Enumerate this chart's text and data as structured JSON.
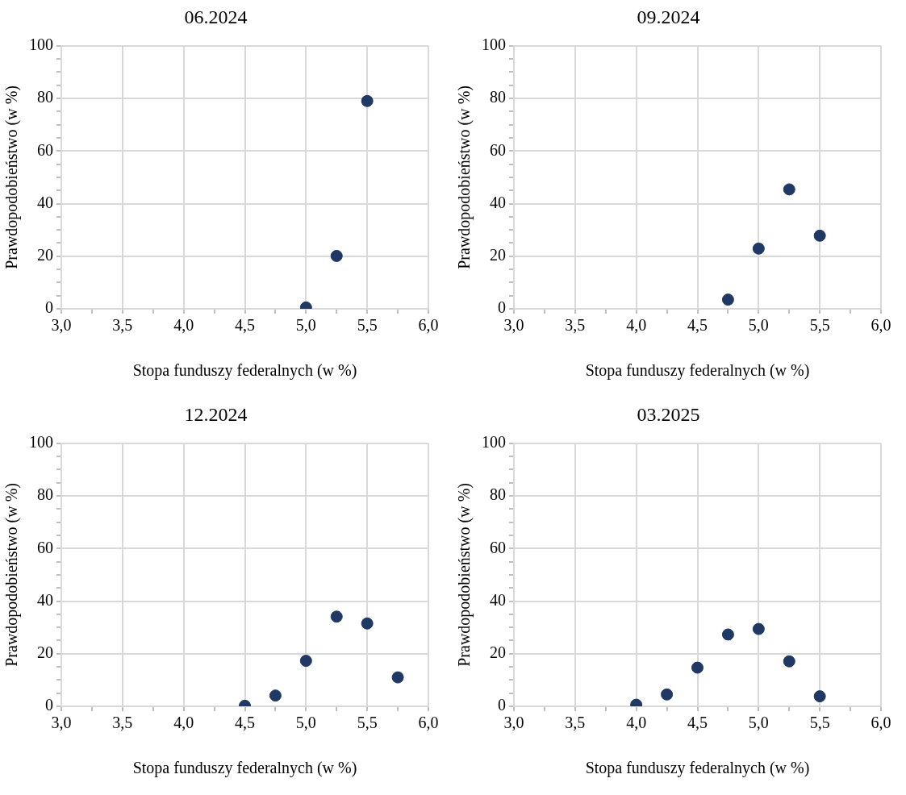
{
  "chart_data": [
    {
      "type": "scatter",
      "title": "06.2024",
      "xlabel": "Stopa funduszy federalnych (w %)",
      "ylabel": "Prawdopodobieństwo (w %)",
      "x": [
        5.0,
        5.25,
        5.5
      ],
      "values": [
        0.5,
        20.1,
        79.0
      ],
      "color": "#1f3864",
      "marker": "circle",
      "grid": true,
      "xlim": [
        3,
        6
      ],
      "ylim": [
        0,
        100
      ],
      "xticks": [
        {
          "value": 3,
          "label": "3,0"
        },
        {
          "value": 3.25,
          "label": null
        },
        {
          "value": 3.5,
          "label": "3,5"
        },
        {
          "value": 3.75,
          "label": null
        },
        {
          "value": 4,
          "label": "4,0"
        },
        {
          "value": 4.25,
          "label": null
        },
        {
          "value": 4.5,
          "label": "4,5"
        },
        {
          "value": 4.75,
          "label": null
        },
        {
          "value": 5,
          "label": "5,0"
        },
        {
          "value": 5.25,
          "label": null
        },
        {
          "value": 5.5,
          "label": "5,5"
        },
        {
          "value": 5.75,
          "label": null
        },
        {
          "value": 6,
          "label": "6,0"
        }
      ],
      "yticks": [
        0,
        {
          "value": 5,
          "label": null
        },
        {
          "value": 10,
          "label": null
        },
        {
          "value": 15,
          "label": null
        },
        20,
        {
          "value": 25,
          "label": null
        },
        {
          "value": 30,
          "label": null
        },
        {
          "value": 35,
          "label": null
        },
        40,
        {
          "value": 45,
          "label": null
        },
        {
          "value": 50,
          "label": null
        },
        {
          "value": 55,
          "label": null
        },
        60,
        {
          "value": 65,
          "label": null
        },
        {
          "value": 70,
          "label": null
        },
        {
          "value": 75,
          "label": null
        },
        80,
        {
          "value": 85,
          "label": null
        },
        {
          "value": 90,
          "label": null
        },
        {
          "value": 95,
          "label": null
        },
        100
      ]
    },
    {
      "type": "scatter",
      "title": "09.2024",
      "xlabel": "Stopa funduszy federalnych (w %)",
      "ylabel": "Prawdopodobieństwo (w %)",
      "x": [
        4.75,
        5.0,
        5.25,
        5.5
      ],
      "values": [
        3.5,
        22.9,
        45.4,
        27.8
      ],
      "color": "#1f3864",
      "marker": "circle",
      "grid": true,
      "xlim": [
        3,
        6
      ],
      "ylim": [
        0,
        100
      ],
      "xticks": [
        {
          "value": 3,
          "label": "3,0"
        },
        {
          "value": 3.25,
          "label": null
        },
        {
          "value": 3.5,
          "label": "3,5"
        },
        {
          "value": 3.75,
          "label": null
        },
        {
          "value": 4,
          "label": "4,0"
        },
        {
          "value": 4.25,
          "label": null
        },
        {
          "value": 4.5,
          "label": "4,5"
        },
        {
          "value": 4.75,
          "label": null
        },
        {
          "value": 5,
          "label": "5,0"
        },
        {
          "value": 5.25,
          "label": null
        },
        {
          "value": 5.5,
          "label": "5,5"
        },
        {
          "value": 5.75,
          "label": null
        },
        {
          "value": 6,
          "label": "6,0"
        }
      ],
      "yticks": [
        0,
        {
          "value": 5,
          "label": null
        },
        {
          "value": 10,
          "label": null
        },
        {
          "value": 15,
          "label": null
        },
        20,
        {
          "value": 25,
          "label": null
        },
        {
          "value": 30,
          "label": null
        },
        {
          "value": 35,
          "label": null
        },
        40,
        {
          "value": 45,
          "label": null
        },
        {
          "value": 50,
          "label": null
        },
        {
          "value": 55,
          "label": null
        },
        60,
        {
          "value": 65,
          "label": null
        },
        {
          "value": 70,
          "label": null
        },
        {
          "value": 75,
          "label": null
        },
        80,
        {
          "value": 85,
          "label": null
        },
        {
          "value": 90,
          "label": null
        },
        {
          "value": 95,
          "label": null
        },
        100
      ]
    },
    {
      "type": "scatter",
      "title": "12.2024",
      "xlabel": "Stopa funduszy federalnych (w %)",
      "ylabel": "Prawdopodobieństwo (w %)",
      "x": [
        4.5,
        4.75,
        5.0,
        5.25,
        5.5,
        5.75
      ],
      "values": [
        0.2,
        4.1,
        17.3,
        34.1,
        31.5,
        11.0
      ],
      "color": "#1f3864",
      "marker": "circle",
      "grid": true,
      "xlim": [
        3,
        6
      ],
      "ylim": [
        0,
        100
      ],
      "xticks": [
        {
          "value": 3,
          "label": "3,0"
        },
        {
          "value": 3.25,
          "label": null
        },
        {
          "value": 3.5,
          "label": "3,5"
        },
        {
          "value": 3.75,
          "label": null
        },
        {
          "value": 4,
          "label": "4,0"
        },
        {
          "value": 4.25,
          "label": null
        },
        {
          "value": 4.5,
          "label": "4,5"
        },
        {
          "value": 4.75,
          "label": null
        },
        {
          "value": 5,
          "label": "5,0"
        },
        {
          "value": 5.25,
          "label": null
        },
        {
          "value": 5.5,
          "label": "5,5"
        },
        {
          "value": 5.75,
          "label": null
        },
        {
          "value": 6,
          "label": "6,0"
        }
      ],
      "yticks": [
        0,
        {
          "value": 5,
          "label": null
        },
        {
          "value": 10,
          "label": null
        },
        {
          "value": 15,
          "label": null
        },
        20,
        {
          "value": 25,
          "label": null
        },
        {
          "value": 30,
          "label": null
        },
        {
          "value": 35,
          "label": null
        },
        40,
        {
          "value": 45,
          "label": null
        },
        {
          "value": 50,
          "label": null
        },
        {
          "value": 55,
          "label": null
        },
        60,
        {
          "value": 65,
          "label": null
        },
        {
          "value": 70,
          "label": null
        },
        {
          "value": 75,
          "label": null
        },
        80,
        {
          "value": 85,
          "label": null
        },
        {
          "value": 90,
          "label": null
        },
        {
          "value": 95,
          "label": null
        },
        100
      ]
    },
    {
      "type": "scatter",
      "title": "03.2025",
      "xlabel": "Stopa funduszy federalnych (w %)",
      "ylabel": "Prawdopodobieństwo (w %)",
      "x": [
        4.0,
        4.25,
        4.5,
        4.75,
        5.0,
        5.25,
        5.5
      ],
      "values": [
        0.6,
        4.5,
        14.7,
        27.3,
        29.4,
        17.1,
        3.8
      ],
      "color": "#1f3864",
      "marker": "circle",
      "grid": true,
      "xlim": [
        3,
        6
      ],
      "ylim": [
        0,
        100
      ],
      "xticks": [
        {
          "value": 3,
          "label": "3,0"
        },
        {
          "value": 3.25,
          "label": null
        },
        {
          "value": 3.5,
          "label": "3,5"
        },
        {
          "value": 3.75,
          "label": null
        },
        {
          "value": 4,
          "label": "4,0"
        },
        {
          "value": 4.25,
          "label": null
        },
        {
          "value": 4.5,
          "label": "4,5"
        },
        {
          "value": 4.75,
          "label": null
        },
        {
          "value": 5,
          "label": "5,0"
        },
        {
          "value": 5.25,
          "label": null
        },
        {
          "value": 5.5,
          "label": "5,5"
        },
        {
          "value": 5.75,
          "label": null
        },
        {
          "value": 6,
          "label": "6,0"
        }
      ],
      "yticks": [
        0,
        {
          "value": 5,
          "label": null
        },
        {
          "value": 10,
          "label": null
        },
        {
          "value": 15,
          "label": null
        },
        20,
        {
          "value": 25,
          "label": null
        },
        {
          "value": 30,
          "label": null
        },
        {
          "value": 35,
          "label": null
        },
        40,
        {
          "value": 45,
          "label": null
        },
        {
          "value": 50,
          "label": null
        },
        {
          "value": 55,
          "label": null
        },
        60,
        {
          "value": 65,
          "label": null
        },
        {
          "value": 70,
          "label": null
        },
        {
          "value": 75,
          "label": null
        },
        80,
        {
          "value": 85,
          "label": null
        },
        {
          "value": 90,
          "label": null
        },
        {
          "value": 95,
          "label": null
        },
        100
      ]
    }
  ]
}
